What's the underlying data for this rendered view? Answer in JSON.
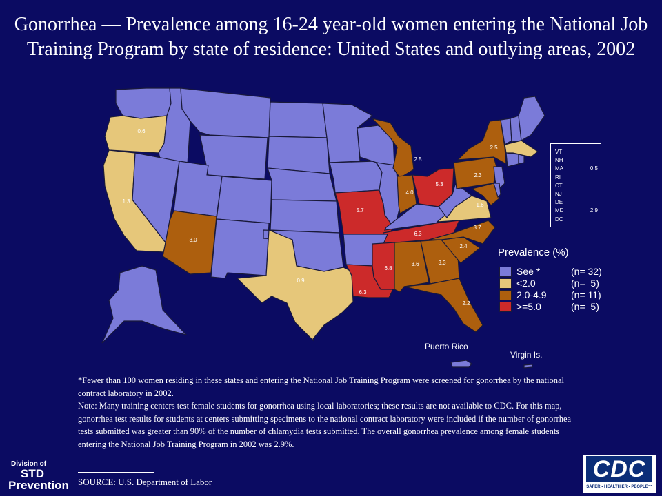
{
  "title": "Gonorrhea — Prevalence among 16-24 year-old women entering the National Job Training Program by state of residence: United States and outlying areas, 2002",
  "colors": {
    "background": "#0b0b62",
    "see_note": "#7b7bd9",
    "lt2": "#e6c77a",
    "mid": "#ad5f0e",
    "ge5": "#cc2a2a"
  },
  "state_values": [
    {
      "state": "OR",
      "value": "0.6"
    },
    {
      "state": "CA",
      "value": "1.3"
    },
    {
      "state": "AZ",
      "value": "3.0"
    },
    {
      "state": "TX",
      "value": "0.9"
    },
    {
      "state": "MO",
      "value": "5.7"
    },
    {
      "state": "MI",
      "value": "2.5"
    },
    {
      "state": "IN",
      "value": "4.0"
    },
    {
      "state": "OH",
      "value": "5.3"
    },
    {
      "state": "NY",
      "value": "2.5"
    },
    {
      "state": "PA",
      "value": "2.3"
    },
    {
      "state": "VA",
      "value": "1.6"
    },
    {
      "state": "NC",
      "value": "3.7"
    },
    {
      "state": "TN",
      "value": "6.3"
    },
    {
      "state": "SC",
      "value": "2.4"
    },
    {
      "state": "GA",
      "value": "3.3"
    },
    {
      "state": "AL",
      "value": "3.6"
    },
    {
      "state": "MS",
      "value": "6.8"
    },
    {
      "state": "LA",
      "value": "6.3"
    },
    {
      "state": "FL",
      "value": "2.2"
    }
  ],
  "small_states": [
    {
      "abbr": "VT",
      "value": ""
    },
    {
      "abbr": "NH",
      "value": ""
    },
    {
      "abbr": "MA",
      "value": "0.5"
    },
    {
      "abbr": "RI",
      "value": ""
    },
    {
      "abbr": "CT",
      "value": ""
    },
    {
      "abbr": "NJ",
      "value": ""
    },
    {
      "abbr": "DE",
      "value": ""
    },
    {
      "abbr": "MD",
      "value": "2.9"
    },
    {
      "abbr": "DC",
      "value": ""
    }
  ],
  "legend": {
    "title": "Prevalence (%)",
    "items": [
      {
        "label": "See *",
        "count": "(n= 32)",
        "color": "#7b7bd9"
      },
      {
        "label": "<2.0",
        "count": "(n=  5)",
        "color": "#e6c77a"
      },
      {
        "label": "2.0-4.9",
        "count": "(n= 11)",
        "color": "#ad5f0e"
      },
      {
        "label": ">=5.0",
        "count": "(n=  5)",
        "color": "#cc2a2a"
      }
    ]
  },
  "outlying": {
    "puerto_rico": "Puerto Rico",
    "virgin_islands": "Virgin Is."
  },
  "footnote": {
    "line1": "*Fewer than 100 women residing in these states and entering the National Job Training  Program were screened for gonorrhea by the national contract laboratory in 2002.",
    "line2": "Note: Many training centers test female students for gonorrhea using local laboratories; these results are not available to CDC. For this map, gonorrhea test results for students at centers submitting specimens to the national contract laboratory were included if the number of gonorrhea tests submitted was greater than 90% of the number of chlamydia tests submitted. The overall gonorrhea prevalence among female students entering the National Job Training  Program in 2002 was 2.9%."
  },
  "source": "SOURCE: U.S. Department of Labor",
  "logos": {
    "std_line1": "Division of",
    "std_line2": "STD",
    "std_line3": "Prevention",
    "cdc": "CDC",
    "cdc_tagline": "SAFER • HEALTHIER • PEOPLE™"
  }
}
